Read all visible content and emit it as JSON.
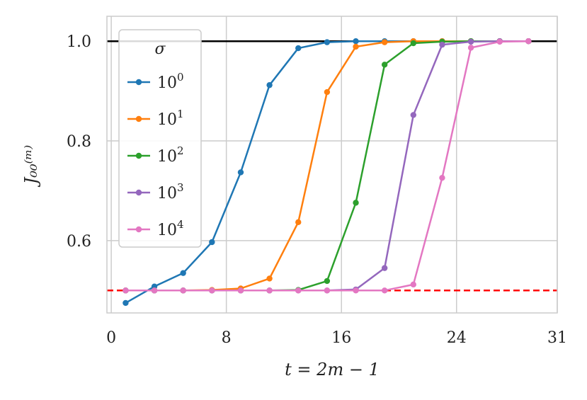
{
  "chart_data": {
    "type": "line",
    "xlabel": "t = 2m − 1",
    "ylabel": "J₀₀⁽ᵐ⁾",
    "xlim": [
      -0.3,
      31
    ],
    "ylim": [
      0.455,
      1.05
    ],
    "xticks": [
      0,
      8,
      16,
      24,
      31
    ],
    "xtick_labels": [
      "0",
      "8",
      "16",
      "24",
      "31"
    ],
    "yticks": [
      0.6,
      0.8,
      1.0
    ],
    "ytick_labels": [
      "0.6",
      "0.8",
      "1.0"
    ],
    "grid": true,
    "legend_title": "σ",
    "legend_position": "top-left",
    "hlines": [
      {
        "y": 1.0,
        "color": "#000000",
        "style": "solid"
      },
      {
        "y": 0.5,
        "color": "#ff0000",
        "style": "dashed"
      }
    ],
    "x": [
      1,
      3,
      5,
      7,
      9,
      11,
      13,
      15,
      17,
      19,
      21,
      23,
      25,
      27,
      29
    ],
    "series": [
      {
        "name": "10",
        "exp": "0",
        "color": "#1f77b4",
        "values": [
          0.475,
          0.508,
          0.535,
          0.597,
          0.737,
          0.912,
          0.986,
          0.998,
          1.0,
          1.0,
          1.0,
          1.0,
          1.0,
          1.0,
          1.0
        ]
      },
      {
        "name": "10",
        "exp": "1",
        "color": "#ff7f0e",
        "values": [
          0.5,
          0.5,
          0.5,
          0.501,
          0.504,
          0.524,
          0.637,
          0.898,
          0.989,
          0.998,
          1.0,
          1.0,
          1.0,
          1.0,
          1.0
        ]
      },
      {
        "name": "10",
        "exp": "2",
        "color": "#2ca02c",
        "values": [
          0.5,
          0.5,
          0.5,
          0.5,
          0.5,
          0.5,
          0.501,
          0.519,
          0.676,
          0.953,
          0.996,
          0.999,
          1.0,
          1.0,
          1.0
        ]
      },
      {
        "name": "10",
        "exp": "3",
        "color": "#9467bd",
        "values": [
          0.5,
          0.5,
          0.5,
          0.5,
          0.5,
          0.5,
          0.5,
          0.5,
          0.502,
          0.545,
          0.852,
          0.993,
          0.999,
          1.0,
          1.0
        ]
      },
      {
        "name": "10",
        "exp": "4",
        "color": "#e377c2",
        "values": [
          0.5,
          0.5,
          0.5,
          0.5,
          0.5,
          0.5,
          0.5,
          0.5,
          0.5,
          0.5,
          0.512,
          0.726,
          0.987,
          0.999,
          1.0
        ]
      }
    ]
  }
}
